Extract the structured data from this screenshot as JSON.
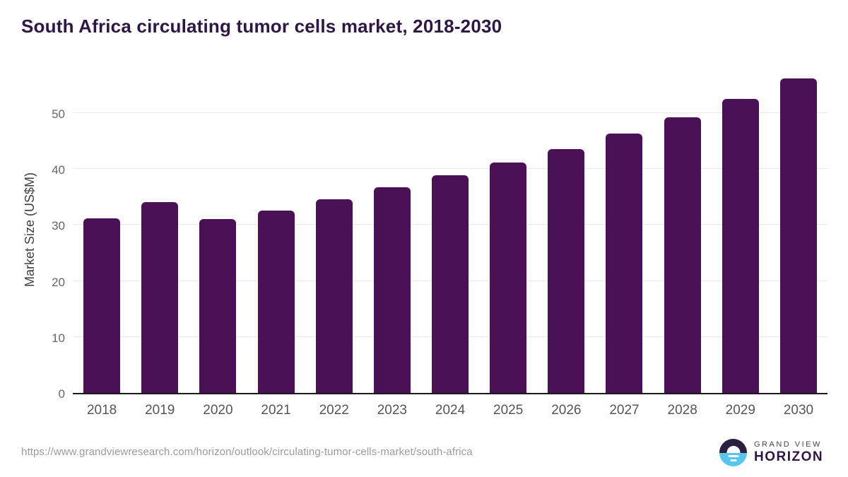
{
  "chart_data": {
    "type": "bar",
    "title": "South Africa circulating tumor cells market, 2018-2030",
    "xlabel": "",
    "ylabel": "Market Size (US$M)",
    "categories": [
      "2018",
      "2019",
      "2020",
      "2021",
      "2022",
      "2023",
      "2024",
      "2025",
      "2026",
      "2027",
      "2028",
      "2029",
      "2030"
    ],
    "values": [
      31.2,
      34.1,
      31.0,
      32.6,
      34.6,
      36.8,
      38.9,
      41.2,
      43.6,
      46.3,
      49.2,
      52.5,
      56.2
    ],
    "yticks": [
      0,
      10,
      20,
      30,
      40,
      50
    ],
    "ylim": [
      0,
      58
    ],
    "grid": true,
    "legend": "none",
    "bar_color": "#4a1157"
  },
  "footer": {
    "source_url": "https://www.grandviewresearch.com/horizon/outlook/circulating-tumor-cells-market/south-africa",
    "logo": {
      "line1": "GRAND VIEW",
      "line2": "HORIZON"
    }
  }
}
